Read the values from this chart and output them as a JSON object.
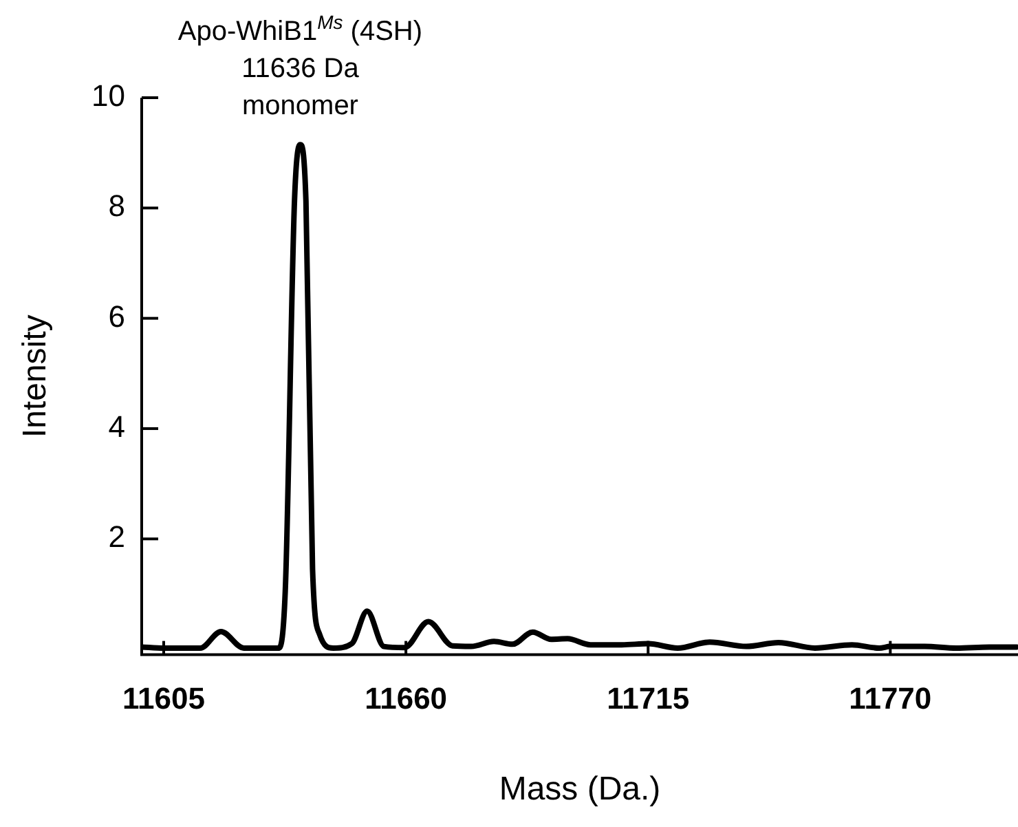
{
  "chart_data": {
    "type": "line",
    "xlabel": "Mass (Da.)",
    "ylabel": "Intensity",
    "x": [
      11600,
      11605,
      11613.3,
      11618,
      11623.2,
      11631,
      11632.6,
      11634.7,
      11636,
      11637.3,
      11638.8,
      11640.4,
      11643.5,
      11647.7,
      11651.2,
      11655,
      11659.7,
      11665.1,
      11670.6,
      11674.8,
      11680,
      11684.2,
      11688.8,
      11693,
      11696.7,
      11701.9,
      11709,
      11715,
      11721.7,
      11729,
      11737.3,
      11744.6,
      11752.9,
      11761.3,
      11767.5,
      11770,
      11777.8,
      11785,
      11792.5,
      11798.7
    ],
    "series": [
      {
        "color": "#000000",
        "values": [
          0.04,
          0.02,
          0.02,
          0.32,
          0.02,
          0.02,
          1.05,
          8.13,
          9.15,
          8.13,
          1.45,
          0.27,
          0.02,
          0.1,
          0.69,
          0.05,
          0.03,
          0.5,
          0.06,
          0.05,
          0.14,
          0.09,
          0.31,
          0.18,
          0.19,
          0.08,
          0.08,
          0.1,
          0.02,
          0.13,
          0.05,
          0.12,
          0.02,
          0.08,
          0.02,
          0.05,
          0.05,
          0.02,
          0.04,
          0.04
        ]
      }
    ],
    "xlim": [
      11600,
      11799
    ],
    "xticks": [
      11605,
      11660,
      11715,
      11770
    ],
    "ylim": [
      -0.1,
      10
    ],
    "yticks": [
      2,
      4,
      6,
      8,
      10
    ],
    "grid": false,
    "legend": false,
    "marker": "none",
    "line_style": "solid",
    "annotations": [
      {
        "text": "Apo-WhiB1$^{Ms}$ (4SH)\n11636 Da\nmonomer",
        "x": 11636,
        "y": 9.15
      }
    ]
  }
}
